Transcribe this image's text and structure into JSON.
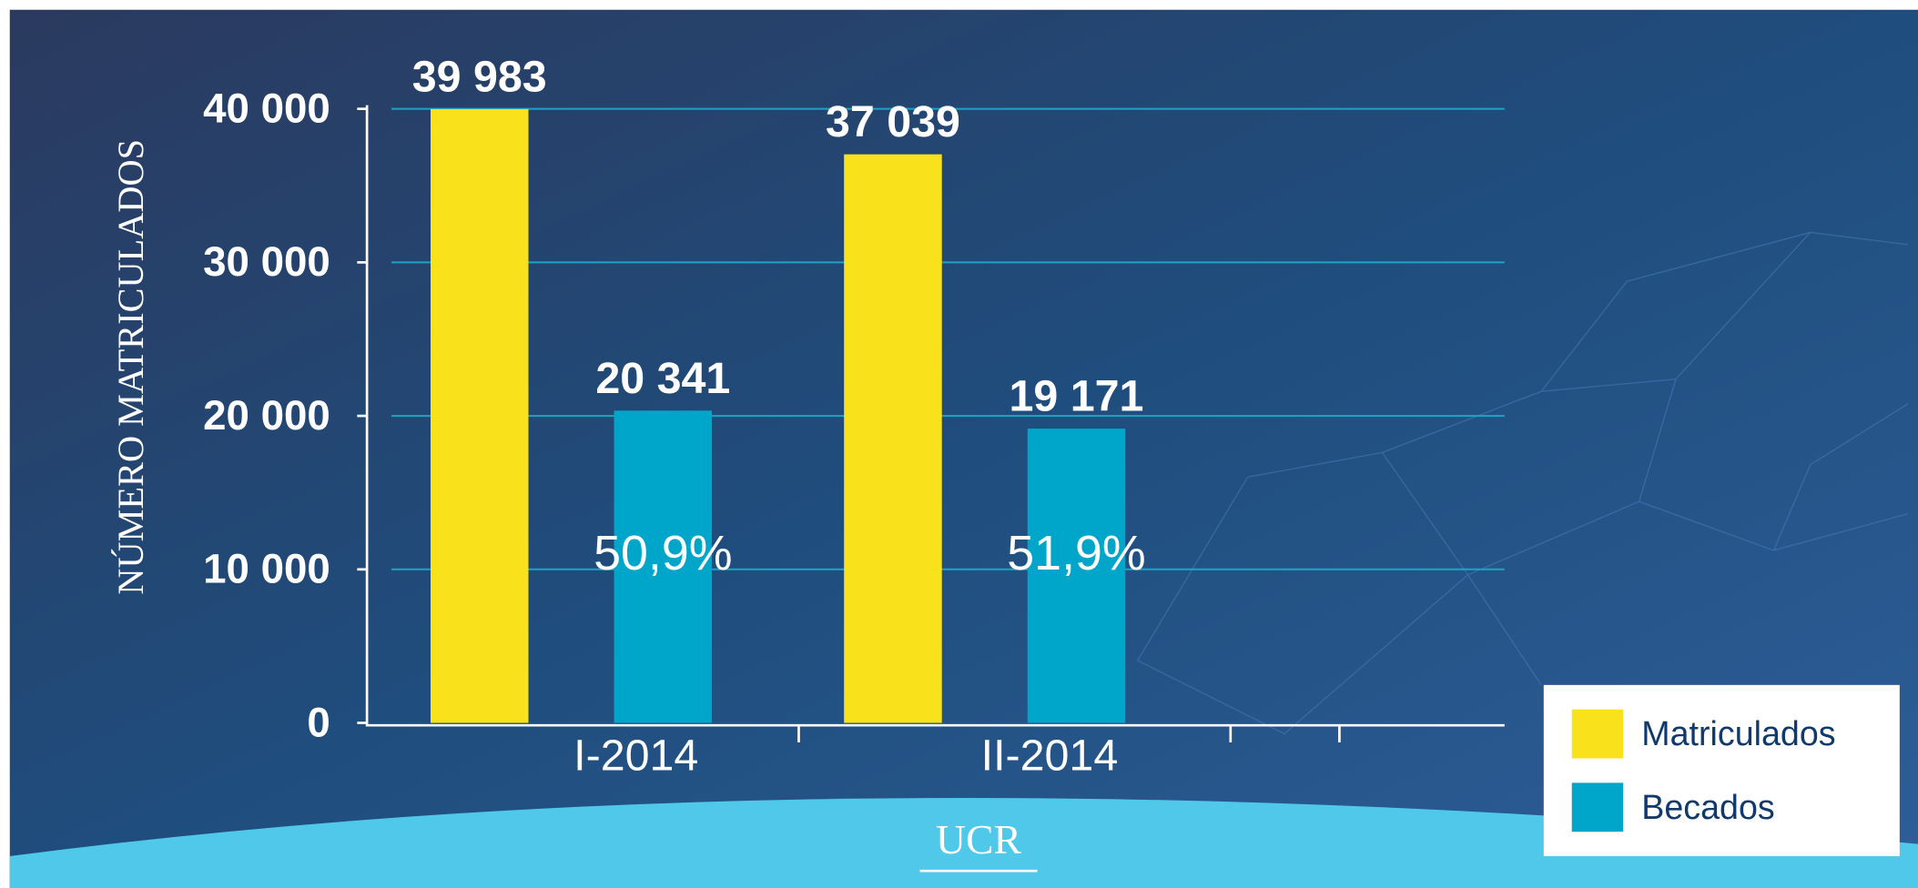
{
  "chart_data": {
    "type": "bar",
    "y_label": "NÚMERO MATRICULADOS",
    "categories": [
      "I-2014",
      "II-2014"
    ],
    "series": [
      {
        "name": "Matriculados",
        "color": "#f9e21c",
        "values": [
          39983,
          37039
        ],
        "value_labels": [
          "39 983",
          "37 039"
        ]
      },
      {
        "name": "Becados",
        "color": "#00a6c9",
        "values": [
          20341,
          19171
        ],
        "value_labels": [
          "20 341",
          "19 171"
        ],
        "annotations": [
          "50,9%",
          "51,9%"
        ]
      }
    ],
    "ylim": [
      0,
      40000
    ],
    "yticks": [
      0,
      {
        "value": 10000,
        "label": "10 000"
      },
      {
        "value": 20000,
        "label": "20 000"
      },
      {
        "value": 30000,
        "label": "30 000"
      },
      {
        "value": 40000,
        "label": "40 000"
      }
    ],
    "grid": true,
    "logo": "UCR"
  }
}
